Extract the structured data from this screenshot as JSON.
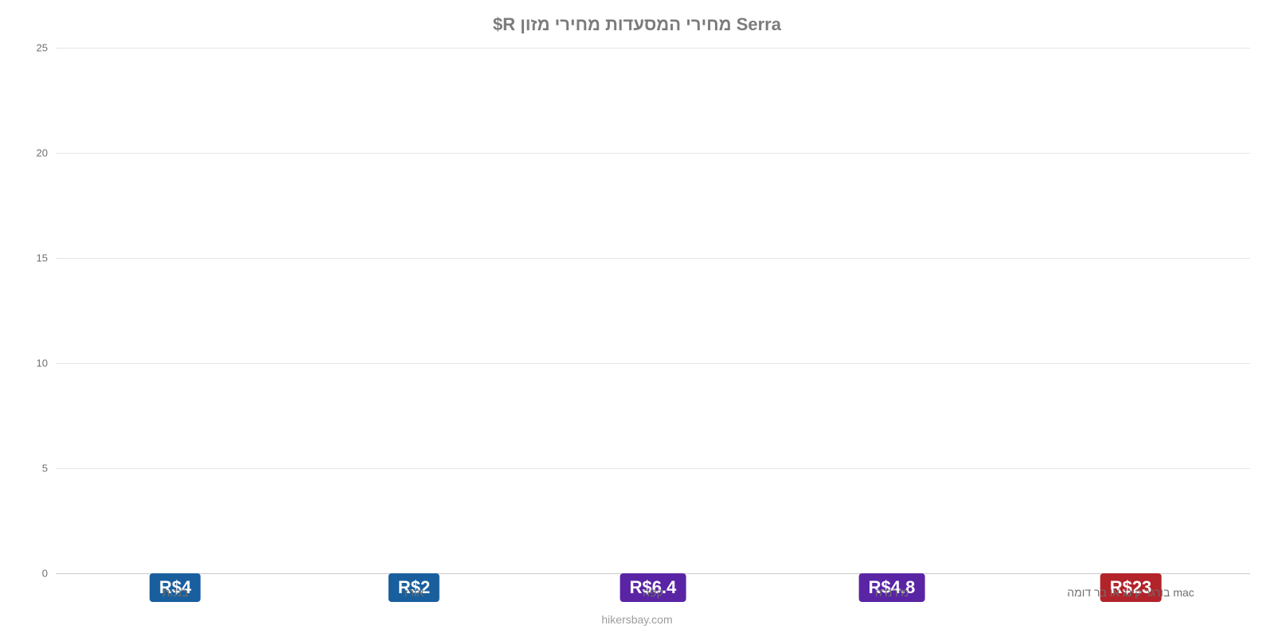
{
  "chart": {
    "title": "Serra מחירי המסעדות מחירי מזון R$",
    "title_fontsize": 22,
    "title_color": "#7b7b7b",
    "background_color": "#ffffff",
    "grid_color": "#e6e6e6",
    "baseline_color": "#c9c9c9",
    "ylim": [
      0,
      25
    ],
    "yticks": [
      0,
      5,
      10,
      15,
      20,
      25
    ],
    "label_color": "#6f6f6f",
    "label_fontsize": 14,
    "bar_width_pct": 75,
    "value_label_fontsize": 22,
    "categories": [
      "mac בורגר קינג או בר דומה",
      "מירנדה",
      "קפה",
      "אורז",
      "בננות"
    ],
    "values": [
      23,
      4.8,
      6.4,
      2,
      4
    ],
    "value_labels": [
      "R$23",
      "R$4.8",
      "R$6.4",
      "R$2",
      "R$4"
    ],
    "bar_colors": [
      "#ee2f39",
      "#7832dc",
      "#7832dc",
      "#227fd2",
      "#227fd2"
    ],
    "badge_colors": [
      "#b2232a",
      "#5a25a5",
      "#5a25a5",
      "#195f9e",
      "#195f9e"
    ],
    "value_label_positions_pct": [
      50,
      20,
      25,
      20,
      20
    ],
    "credit": "hikersbay.com",
    "credit_color": "#9c9c9c"
  }
}
